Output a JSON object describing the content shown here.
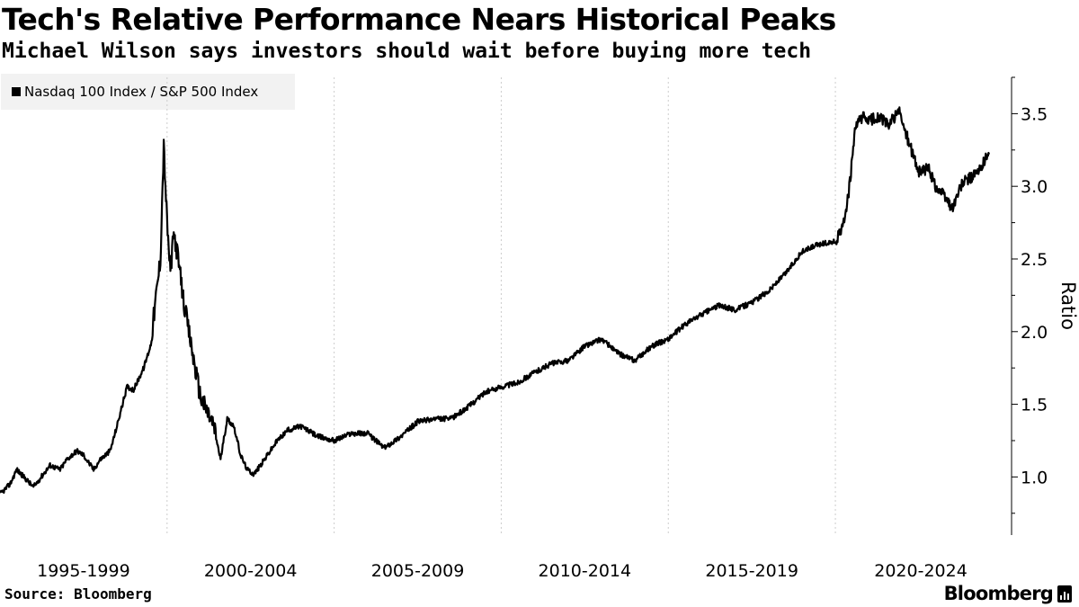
{
  "title": "Tech's Relative Performance Nears Historical Peaks",
  "subtitle": "Michael Wilson says investors should wait before buying more tech",
  "legend_label": "Nasdaq 100 Index / S&P 500 Index",
  "source": "Source: Bloomberg",
  "brand": "Bloomberg",
  "brand_icon": "bar-chart-icon",
  "colors": {
    "line": "#000000",
    "grid": "#cccccc",
    "legend_bg": "#f2f2f2"
  },
  "chart_data": {
    "type": "line",
    "title": "Tech's Relative Performance Nears Historical Peaks",
    "subtitle": "Michael Wilson says investors should wait before buying more tech",
    "ylabel": "Ratio",
    "xlabel": "",
    "ylim": [
      0.6,
      3.8
    ],
    "yticks": [
      1.0,
      1.5,
      2.0,
      2.5,
      3.0,
      3.5
    ],
    "ytick_labels": [
      "1.0",
      "1.5",
      "2.0",
      "2.5",
      "3.0",
      "3.5"
    ],
    "y_axis_side": "right",
    "grid": "vertical dotted",
    "legend_position": "top-left",
    "xlim": [
      1995.0,
      2024.6
    ],
    "x_groups": [
      {
        "label": "1995-1999",
        "start": 1995,
        "end": 2000
      },
      {
        "label": "2000-2004",
        "start": 2000,
        "end": 2005
      },
      {
        "label": "2005-2009",
        "start": 2005,
        "end": 2010
      },
      {
        "label": "2010-2014",
        "start": 2010,
        "end": 2015
      },
      {
        "label": "2015-2019",
        "start": 2015,
        "end": 2020
      },
      {
        "label": "2020-2024",
        "start": 2020,
        "end": 2025
      }
    ],
    "series": [
      {
        "name": "Nasdaq 100 Index / S&P 500 Index",
        "x": [
          1995.0,
          1995.3,
          1995.5,
          1995.8,
          1996.0,
          1996.3,
          1996.5,
          1996.8,
          1997.0,
          1997.3,
          1997.5,
          1997.8,
          1998.0,
          1998.3,
          1998.5,
          1998.8,
          1999.0,
          1999.3,
          1999.5,
          1999.8,
          1999.9,
          2000.0,
          2000.1,
          2000.2,
          2000.3,
          2000.5,
          2000.8,
          2001.0,
          2001.2,
          2001.4,
          2001.6,
          2001.8,
          2002.0,
          2002.2,
          2002.4,
          2002.6,
          2002.8,
          2003.0,
          2003.3,
          2003.6,
          2004.0,
          2004.5,
          2005.0,
          2005.5,
          2006.0,
          2006.5,
          2007.0,
          2007.5,
          2008.0,
          2008.5,
          2009.0,
          2009.5,
          2010.0,
          2010.5,
          2011.0,
          2011.5,
          2012.0,
          2012.5,
          2013.0,
          2013.5,
          2014.0,
          2014.5,
          2015.0,
          2015.5,
          2016.0,
          2016.5,
          2017.0,
          2017.5,
          2018.0,
          2018.5,
          2019.0,
          2019.5,
          2020.0,
          2020.2,
          2020.4,
          2020.6,
          2020.8,
          2021.0,
          2021.3,
          2021.6,
          2021.9,
          2022.2,
          2022.5,
          2022.8,
          2023.0,
          2023.2,
          2023.5,
          2023.8,
          2024.0,
          2024.3,
          2024.5,
          2024.6
        ],
        "values": [
          0.88,
          0.95,
          1.05,
          0.98,
          0.93,
          1.02,
          1.08,
          1.05,
          1.12,
          1.18,
          1.15,
          1.05,
          1.12,
          1.18,
          1.35,
          1.62,
          1.6,
          1.75,
          1.9,
          2.5,
          3.28,
          2.75,
          2.4,
          2.68,
          2.55,
          2.2,
          1.8,
          1.55,
          1.45,
          1.35,
          1.12,
          1.4,
          1.35,
          1.15,
          1.05,
          1.02,
          1.08,
          1.15,
          1.25,
          1.32,
          1.35,
          1.28,
          1.25,
          1.3,
          1.3,
          1.2,
          1.28,
          1.38,
          1.4,
          1.4,
          1.48,
          1.58,
          1.62,
          1.65,
          1.72,
          1.78,
          1.8,
          1.9,
          1.95,
          1.85,
          1.8,
          1.9,
          1.95,
          2.05,
          2.12,
          2.18,
          2.15,
          2.2,
          2.28,
          2.4,
          2.55,
          2.6,
          2.62,
          2.7,
          2.95,
          3.4,
          3.48,
          3.45,
          3.48,
          3.42,
          3.52,
          3.3,
          3.1,
          3.12,
          3.0,
          2.95,
          2.85,
          3.02,
          3.05,
          3.1,
          3.2,
          3.22
        ]
      }
    ]
  }
}
